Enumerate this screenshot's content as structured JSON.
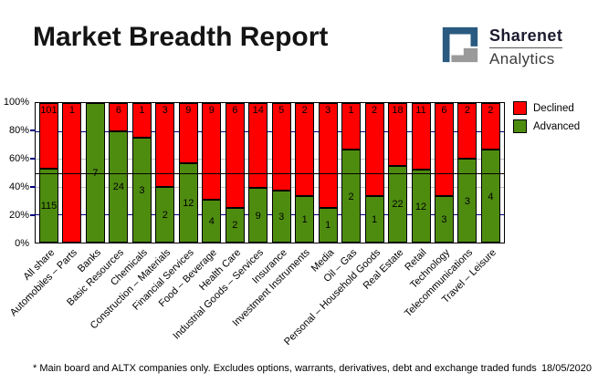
{
  "header": {
    "title": "Market Breadth Report",
    "logo": {
      "brand": "Sharenet",
      "sub": "Analytics"
    }
  },
  "colors": {
    "declined": "#FF0000",
    "advanced": "#4E8C10",
    "grid_navy": "#000080",
    "grid_gray": "#C0C0C0",
    "reference_line": "#000000",
    "logo_blue": "#2A5A80",
    "logo_gray": "#9A9A9A"
  },
  "chart_data": {
    "type": "bar",
    "stacked": true,
    "percent": true,
    "title": "Market Breadth Report",
    "categories": [
      "All share",
      "Automobiles – Parts",
      "Banks",
      "Basic Resources",
      "Chemicals",
      "Construction – Materials",
      "Financial Services",
      "Food – Beverage",
      "Health Care",
      "Industrial Goods – Services",
      "Insurance",
      "Investment Instruments",
      "Media",
      "Oil – Gas",
      "Personal – Household Goods",
      "Real Estate",
      "Retail",
      "Technology",
      "Telecommunications",
      "Travel – Leisure"
    ],
    "series": [
      {
        "name": "Declined",
        "color": "#FF0000",
        "values": [
          101,
          1,
          0,
          6,
          1,
          3,
          9,
          9,
          6,
          14,
          5,
          2,
          3,
          1,
          2,
          18,
          11,
          6,
          2,
          2
        ]
      },
      {
        "name": "Advanced",
        "color": "#4E8C10",
        "values": [
          115,
          0,
          7,
          24,
          3,
          2,
          12,
          4,
          2,
          9,
          3,
          1,
          1,
          2,
          1,
          22,
          12,
          3,
          3,
          4
        ]
      }
    ],
    "ylim": [
      0,
      100
    ],
    "y_ticks": [
      "100%",
      "80%",
      "60%",
      "40%",
      "20%",
      "0%"
    ],
    "gridlines": [
      {
        "pct": 20,
        "color": "#000080"
      },
      {
        "pct": 40,
        "color": "#C0C0C0"
      },
      {
        "pct": 60,
        "color": "#C0C0C0"
      },
      {
        "pct": 80,
        "color": "#000080"
      }
    ],
    "reference_line_pct": 50,
    "legend_position": "right"
  },
  "footer": {
    "note": "* Main board and ALTX companies only. Excludes options, warrants, derivatives, debt and exchange traded funds",
    "date": "18/05/2020"
  }
}
